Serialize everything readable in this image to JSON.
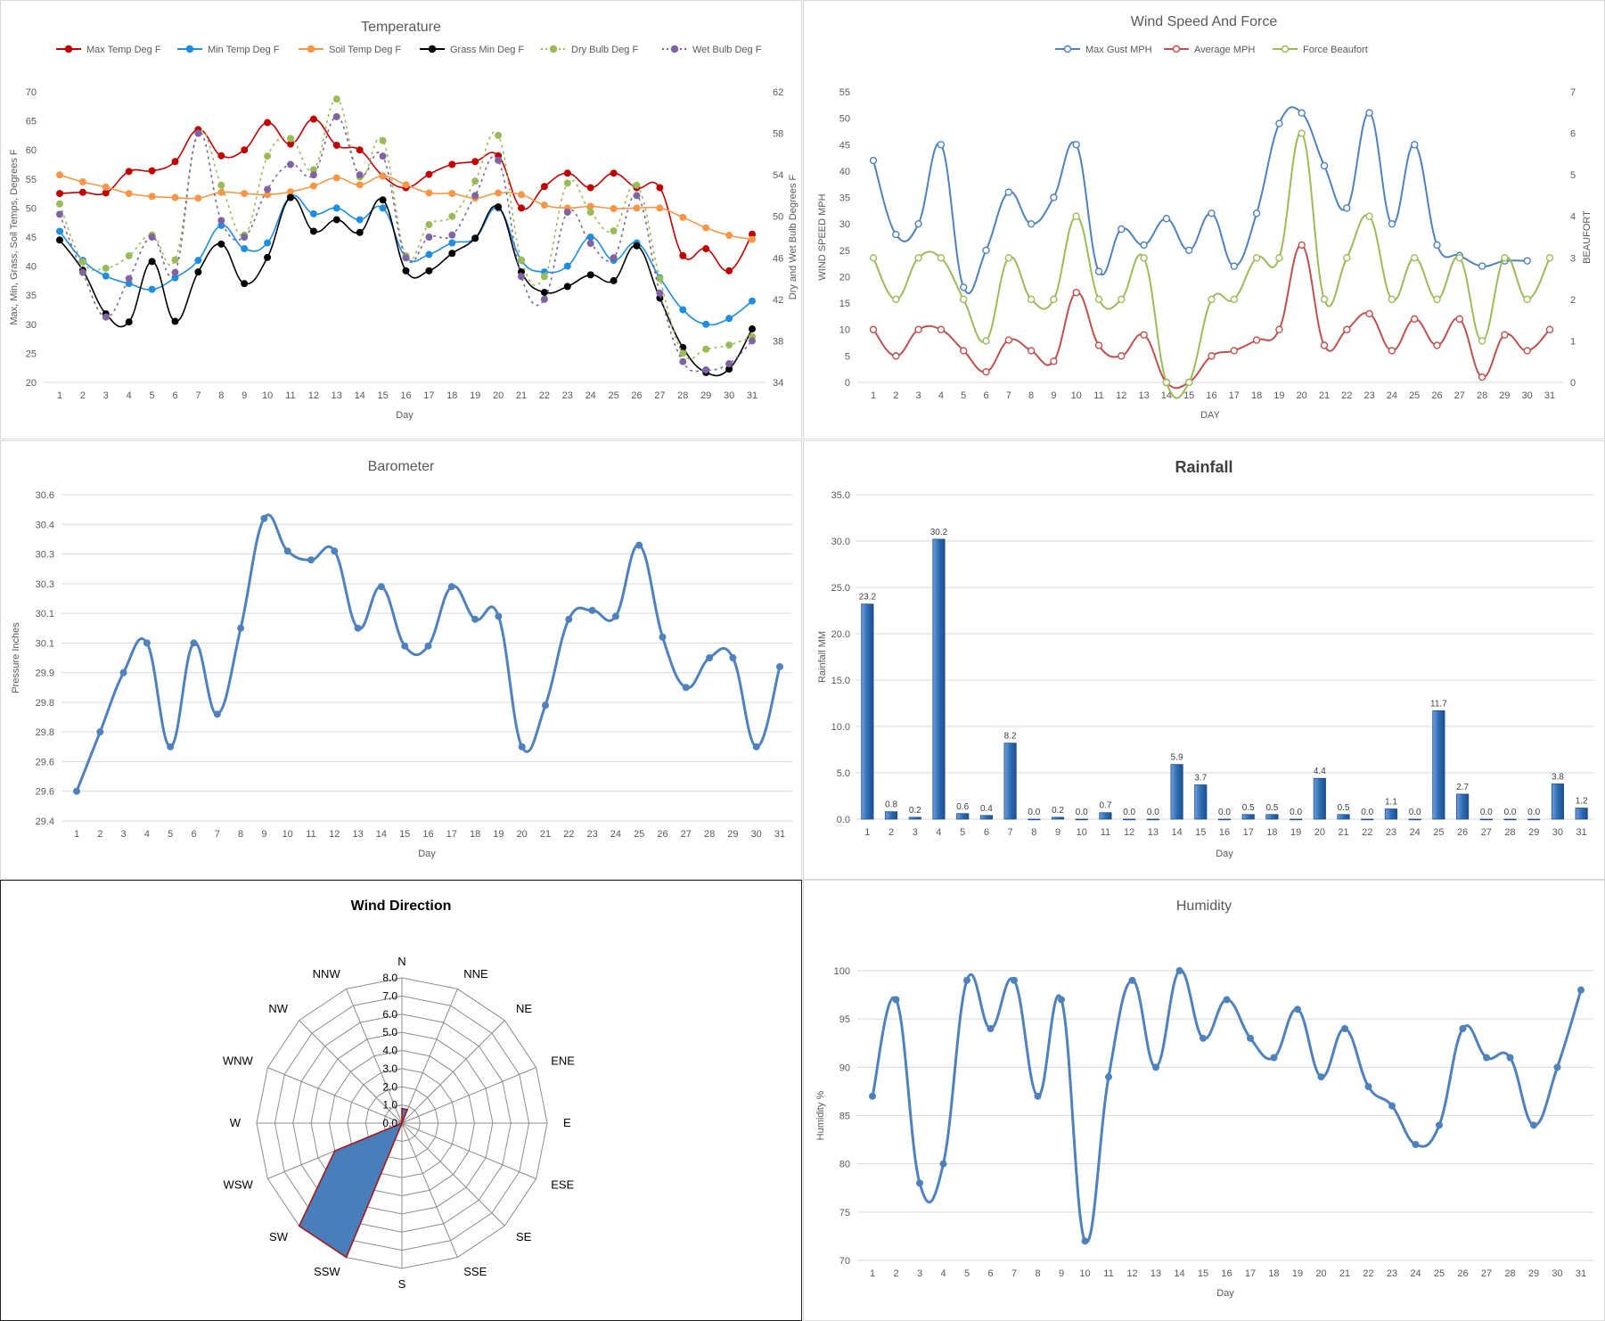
{
  "chart_data": [
    {
      "id": "temperature",
      "type": "line",
      "title": "Temperature",
      "xlabel": "Day",
      "ylabel": "Max, Min, Grass, Soil Temps, Degrees F",
      "y2label": "Dry and Wet Bulb Degrees F",
      "ylim": [
        20,
        70
      ],
      "ytick_step": 5,
      "y2lim": [
        34,
        62
      ],
      "y2tick_step": 4,
      "legend_position": "top",
      "grid": false,
      "x": [
        1,
        2,
        3,
        4,
        5,
        6,
        7,
        8,
        9,
        10,
        11,
        12,
        13,
        14,
        15,
        16,
        17,
        18,
        19,
        20,
        21,
        22,
        23,
        24,
        25,
        26,
        27,
        28,
        29,
        30,
        31
      ],
      "series": [
        {
          "name": "Max Temp Deg F",
          "color": "#c00000",
          "axis": "left",
          "dash": false,
          "values": [
            52.5,
            52.7,
            52.6,
            56.3,
            56.4,
            58.0,
            63.5,
            59.0,
            60.0,
            64.7,
            61.0,
            65.3,
            60.8,
            60.0,
            55.5,
            53.5,
            55.8,
            57.5,
            58.0,
            59.0,
            50.0,
            53.7,
            56.0,
            53.5,
            56.0,
            53.5,
            53.5,
            41.8,
            43.0,
            39.2,
            45.5
          ]
        },
        {
          "name": "Min Temp Deg F",
          "color": "#1f8de0",
          "axis": "left",
          "dash": false,
          "values": [
            46.0,
            41.0,
            38.3,
            37.0,
            36.0,
            38.0,
            41.0,
            47.0,
            43.0,
            44.0,
            52.0,
            49.0,
            50.0,
            48.0,
            50.0,
            41.5,
            42.0,
            44.0,
            44.8,
            50.0,
            41.0,
            39.0,
            40.0,
            45.0,
            41.0,
            44.0,
            38.0,
            32.5,
            30.0,
            31.0,
            34.0
          ]
        },
        {
          "name": "Soil Temp Deg F",
          "color": "#f79646",
          "axis": "left",
          "dash": false,
          "values": [
            55.7,
            54.5,
            53.6,
            52.5,
            52.0,
            51.8,
            51.7,
            52.7,
            52.5,
            52.3,
            52.8,
            53.8,
            55.2,
            54.0,
            55.5,
            54.0,
            52.6,
            52.5,
            51.7,
            52.6,
            52.3,
            50.5,
            50.0,
            50.3,
            49.9,
            50.0,
            50.0,
            48.4,
            46.6,
            45.3,
            44.6
          ]
        },
        {
          "name": "Grass Min Deg F",
          "color": "#000000",
          "axis": "left",
          "dash": false,
          "values": [
            44.5,
            39.3,
            31.8,
            30.4,
            40.8,
            30.5,
            39.0,
            43.8,
            37.0,
            41.5,
            51.8,
            46.0,
            48.0,
            45.8,
            51.4,
            39.2,
            39.2,
            42.2,
            44.8,
            50.2,
            39.0,
            35.5,
            36.5,
            38.5,
            37.5,
            43.5,
            34.5,
            26.0,
            21.7,
            22.3,
            29.2
          ]
        },
        {
          "name": "Dry Bulb Deg F",
          "color": "#9bbb59",
          "axis": "right",
          "dash": true,
          "values": [
            51.2,
            45.6,
            45.0,
            46.2,
            48.2,
            45.8,
            58.0,
            53.0,
            48.2,
            55.8,
            57.5,
            54.5,
            61.3,
            53.8,
            57.3,
            46.2,
            49.2,
            50.0,
            53.4,
            57.8,
            45.8,
            44.2,
            53.2,
            50.4,
            48.6,
            53.0,
            44.0,
            36.8,
            37.2,
            37.6,
            38.4
          ]
        },
        {
          "name": "Wet Bulb Deg F",
          "color": "#8064a2",
          "axis": "right",
          "dash": true,
          "values": [
            50.2,
            44.6,
            40.3,
            44.0,
            48.0,
            44.6,
            58.0,
            49.6,
            48.0,
            52.6,
            55.0,
            54.0,
            59.6,
            54.0,
            55.8,
            46.0,
            48.0,
            48.2,
            52.0,
            55.4,
            44.2,
            42.0,
            50.4,
            47.4,
            46.0,
            52.0,
            42.6,
            36.0,
            35.2,
            35.8,
            38.0
          ]
        }
      ]
    },
    {
      "id": "wind",
      "type": "line",
      "title": "Wind Speed And Force",
      "xlabel": "DAY",
      "ylabel": "WIND SPEED MPH",
      "y2label": "BEAUFORT",
      "ylim": [
        0,
        55
      ],
      "ytick_step": 5,
      "y2lim": [
        0,
        7
      ],
      "y2tick_step": 1,
      "legend_position": "top",
      "grid": false,
      "x": [
        1,
        2,
        3,
        4,
        5,
        6,
        7,
        8,
        9,
        10,
        11,
        12,
        13,
        14,
        15,
        16,
        17,
        18,
        19,
        20,
        21,
        22,
        23,
        24,
        25,
        26,
        27,
        28,
        29,
        30,
        31
      ],
      "series": [
        {
          "name": "Max Gust MPH",
          "color": "#4f81bd",
          "axis": "left",
          "values": [
            42,
            28,
            30,
            45,
            18,
            25,
            36,
            30,
            35,
            45,
            21,
            29,
            26,
            31,
            25,
            32,
            22,
            32,
            49,
            51,
            41,
            33,
            51,
            30,
            45,
            26,
            24,
            22,
            23,
            23,
            null
          ]
        },
        {
          "name": "Average MPH",
          "color": "#c0504d",
          "axis": "left",
          "values": [
            10,
            5,
            10,
            10,
            6,
            2,
            8,
            6,
            4,
            17,
            7,
            5,
            9,
            0,
            0,
            5,
            6,
            8,
            10,
            26,
            7,
            10,
            13,
            6,
            12,
            7,
            12,
            1,
            9,
            6,
            10
          ]
        },
        {
          "name": "Force Beaufort",
          "color": "#9bbb59",
          "axis": "right",
          "values": [
            3,
            2,
            3,
            3,
            2,
            1,
            3,
            2,
            2,
            4,
            2,
            2,
            3,
            0,
            0,
            2,
            2,
            3,
            3,
            6,
            2,
            3,
            4,
            2,
            3,
            2,
            3,
            1,
            3,
            2,
            3
          ]
        }
      ]
    },
    {
      "id": "barometer",
      "type": "line",
      "title": "Barometer",
      "xlabel": "Day",
      "ylabel": "Pressure Inches",
      "ylim": [
        29.45,
        30.55
      ],
      "ytick_step": 0.1,
      "grid": true,
      "x": [
        1,
        2,
        3,
        4,
        5,
        6,
        7,
        8,
        9,
        10,
        11,
        12,
        13,
        14,
        15,
        16,
        17,
        18,
        19,
        20,
        21,
        22,
        23,
        24,
        25,
        26,
        27,
        28,
        29,
        30,
        31
      ],
      "series": [
        {
          "name": "",
          "color": "#4f81bd",
          "values": [
            29.55,
            29.75,
            29.95,
            30.05,
            29.7,
            30.05,
            29.81,
            30.1,
            30.47,
            30.36,
            30.33,
            30.36,
            30.1,
            30.24,
            30.04,
            30.04,
            30.24,
            30.13,
            30.14,
            29.7,
            29.84,
            30.13,
            30.16,
            30.14,
            30.38,
            30.07,
            29.9,
            30.0,
            30.0,
            29.7,
            29.97
          ]
        }
      ]
    },
    {
      "id": "rainfall",
      "type": "bar",
      "title": "Rainfall",
      "xlabel": "Day",
      "ylabel": "Rainfall MM",
      "ylim": [
        0,
        35
      ],
      "ytick_step": 5,
      "grid": true,
      "categories": [
        "1",
        "2",
        "3",
        "4",
        "5",
        "6",
        "7",
        "8",
        "9",
        "10",
        "11",
        "12",
        "13",
        "14",
        "15",
        "16",
        "17",
        "18",
        "19",
        "20",
        "21",
        "22",
        "23",
        "24",
        "25",
        "26",
        "27",
        "28",
        "29",
        "30",
        "31"
      ],
      "values": [
        23.2,
        0.8,
        0.2,
        30.2,
        0.6,
        0.4,
        8.2,
        0.0,
        0.2,
        0.0,
        0.7,
        0.0,
        0.0,
        5.9,
        3.7,
        0.0,
        0.5,
        0.5,
        0.0,
        4.4,
        0.5,
        0.0,
        1.1,
        0.0,
        11.7,
        2.7,
        0.0,
        0.0,
        0.0,
        3.8,
        1.2
      ],
      "color": "#2e6db4"
    },
    {
      "id": "wind_direction",
      "type": "radar",
      "title": "Wind Direction",
      "categories": [
        "N",
        "NNE",
        "NE",
        "ENE",
        "E",
        "ESE",
        "SE",
        "SSE",
        "S",
        "SSW",
        "SW",
        "WSW",
        "W",
        "WNW",
        "NW",
        "NNW"
      ],
      "values": [
        0.8,
        0.8,
        0.0,
        0.0,
        0.0,
        0.0,
        0.0,
        0.0,
        0.0,
        8.0,
        8.0,
        4.0,
        0.0,
        0.0,
        0.0,
        0.0
      ],
      "rlim": [
        0,
        8
      ],
      "rtick_step": 1,
      "fill_color": "#4a7ebb",
      "line_color": "#a01a1a"
    },
    {
      "id": "humidity",
      "type": "line",
      "title": "Humidity",
      "xlabel": "Day",
      "ylabel": "Humidity %",
      "ylim": [
        70,
        100
      ],
      "ytick_step": 5,
      "grid": true,
      "x": [
        1,
        2,
        3,
        4,
        5,
        6,
        7,
        8,
        9,
        10,
        11,
        12,
        13,
        14,
        15,
        16,
        17,
        18,
        19,
        20,
        21,
        22,
        23,
        24,
        25,
        26,
        27,
        28,
        29,
        30,
        31
      ],
      "series": [
        {
          "name": "",
          "color": "#4f81bd",
          "values": [
            87,
            97,
            78,
            80,
            99,
            94,
            99,
            87,
            97,
            72,
            89,
            99,
            90,
            100,
            93,
            97,
            93,
            91,
            96,
            89,
            94,
            88,
            86,
            82,
            84,
            94,
            91,
            91,
            84,
            90,
            98
          ]
        }
      ]
    }
  ]
}
